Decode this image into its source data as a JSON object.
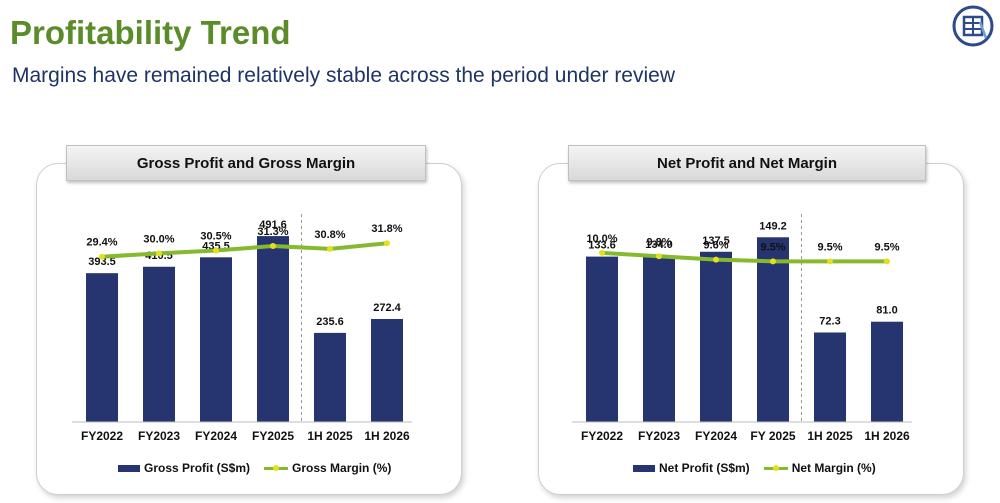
{
  "page": {
    "title": "Profitability Trend",
    "subtitle": "Margins have remained relatively stable across the period under review"
  },
  "colors": {
    "title": "#5b8c2a",
    "subtitle": "#1f3466",
    "bar": "#263470",
    "line": "#86b92d",
    "marker": "#e3e020"
  },
  "chart_data": [
    {
      "type": "bar",
      "title": "Gross Profit and Gross Margin",
      "categories": [
        "FY2022",
        "FY2023",
        "FY2024",
        "FY2025",
        "1H 2025",
        "1H 2026"
      ],
      "bar_labels": [
        "393.5",
        "410.5",
        "435.5",
        "491.6",
        "235.6",
        "272.4"
      ],
      "line_labels": [
        "29.4%",
        "30.0%",
        "30.5%",
        "31.3%",
        "30.8%",
        "31.8%"
      ],
      "series": [
        {
          "name": "Gross Profit (S$m)",
          "type": "bar",
          "values": [
            393.5,
            410.5,
            435.5,
            491.6,
            235.6,
            272.4
          ]
        },
        {
          "name": "Gross Margin (%)",
          "type": "line",
          "values": [
            29.4,
            30.0,
            30.5,
            31.3,
            30.8,
            31.8
          ]
        }
      ],
      "bar_axis_max": 550,
      "line_axis_range": [
        0,
        37
      ],
      "divider_after_index": 3,
      "legend_position": "bottom",
      "grid": false
    },
    {
      "type": "bar",
      "title": "Net Profit and Net Margin",
      "categories": [
        "FY2022",
        "FY2023",
        "FY2024",
        "FY 2025",
        "1H 2025",
        "1H 2026"
      ],
      "bar_labels": [
        "133.6",
        "134.0",
        "137.5",
        "149.2",
        "72.3",
        "81.0"
      ],
      "line_labels": [
        "10.0%",
        "9.8%",
        "9.6%",
        "9.5%",
        "9.5%",
        "9.5%"
      ],
      "series": [
        {
          "name": "Net Profit (S$m)",
          "type": "bar",
          "values": [
            133.6,
            134.0,
            137.5,
            149.2,
            72.3,
            81.0
          ]
        },
        {
          "name": "Net Margin (%)",
          "type": "line",
          "values": [
            10.0,
            9.8,
            9.6,
            9.5,
            9.5,
            9.5
          ]
        }
      ],
      "bar_axis_max": 168,
      "line_axis_range": [
        0,
        12.3
      ],
      "divider_after_index": 3,
      "legend_position": "bottom",
      "grid": false
    }
  ]
}
